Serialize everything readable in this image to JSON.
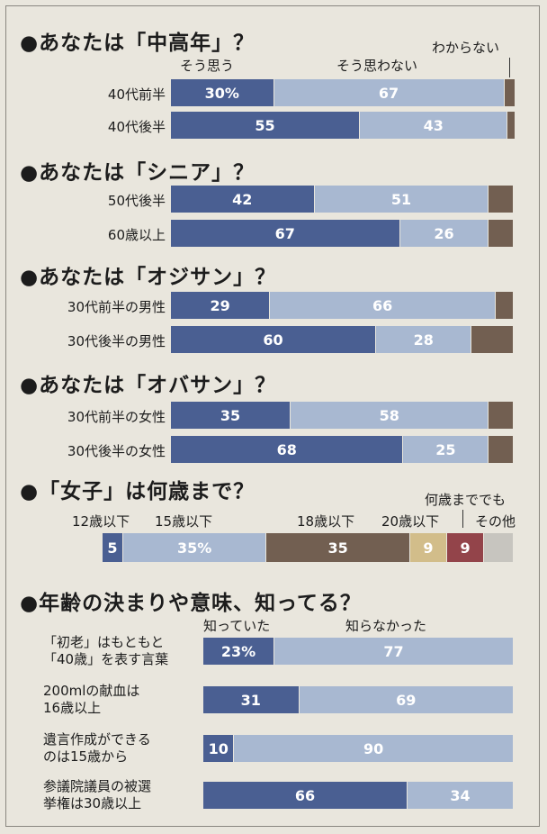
{
  "colors": {
    "dark": "#4a5f92",
    "light": "#a8b8d1",
    "brown": "#725f51",
    "tan": "#d2bd8a",
    "red": "#93444a",
    "gray": "#c7c5bf"
  },
  "sections": [
    {
      "title": "●あなたは「中高年」？"
    },
    {
      "title": "●あなたは「シニア」？"
    },
    {
      "title": "●あなたは「オジサン」？"
    },
    {
      "title": "●あなたは「オバサン」？"
    },
    {
      "title": "●「女子」は何歳まで？"
    },
    {
      "title": "●年齢の決まりや意味、知ってる？"
    }
  ],
  "legend": {
    "yes": "そう思う",
    "no": "そう思わない",
    "unknown": "わからない",
    "knew": "知っていた",
    "didnt_know": "知らなかった"
  },
  "chart_data": [
    {
      "type": "bar",
      "title": "●あなたは「中高年」？",
      "categories": [
        "40代前半",
        "40代後半"
      ],
      "series": [
        {
          "name": "そう思う",
          "values": [
            30,
            55
          ],
          "labels": [
            "30%",
            "55"
          ]
        },
        {
          "name": "そう思わない",
          "values": [
            67,
            43
          ],
          "labels": [
            "67",
            "43"
          ]
        },
        {
          "name": "わからない",
          "values": [
            3,
            2
          ],
          "labels": [
            "",
            ""
          ]
        }
      ]
    },
    {
      "type": "bar",
      "title": "●あなたは「シニア」？",
      "categories": [
        "50代後半",
        "60歳以上"
      ],
      "series": [
        {
          "name": "",
          "values": [
            42,
            67
          ],
          "labels": [
            "42",
            "67"
          ]
        },
        {
          "name": "",
          "values": [
            51,
            26
          ],
          "labels": [
            "51",
            "26"
          ]
        },
        {
          "name": "",
          "values": [
            7,
            7
          ],
          "labels": [
            "",
            ""
          ]
        }
      ]
    },
    {
      "type": "bar",
      "title": "●あなたは「オジサン」？",
      "categories": [
        "30代前半の男性",
        "30代後半の男性"
      ],
      "series": [
        {
          "name": "",
          "values": [
            29,
            60
          ],
          "labels": [
            "29",
            "60"
          ]
        },
        {
          "name": "",
          "values": [
            66,
            28
          ],
          "labels": [
            "66",
            "28"
          ]
        },
        {
          "name": "",
          "values": [
            5,
            12
          ],
          "labels": [
            "",
            ""
          ]
        }
      ]
    },
    {
      "type": "bar",
      "title": "●あなたは「オバサン」？",
      "categories": [
        "30代前半の女性",
        "30代後半の女性"
      ],
      "series": [
        {
          "name": "",
          "values": [
            35,
            68
          ],
          "labels": [
            "35",
            "68"
          ]
        },
        {
          "name": "",
          "values": [
            58,
            25
          ],
          "labels": [
            "58",
            "25"
          ]
        },
        {
          "name": "",
          "values": [
            7,
            7
          ],
          "labels": [
            "",
            ""
          ]
        }
      ]
    },
    {
      "type": "bar",
      "title": "●「女子」は何歳まで？",
      "categories": [
        ""
      ],
      "series": [
        {
          "name": "12歳以下",
          "values": [
            5
          ],
          "labels": [
            "5"
          ]
        },
        {
          "name": "15歳以下",
          "values": [
            35
          ],
          "labels": [
            "35%"
          ]
        },
        {
          "name": "18歳以下",
          "values": [
            35
          ],
          "labels": [
            "35"
          ]
        },
        {
          "name": "20歳以下",
          "values": [
            9
          ],
          "labels": [
            "9"
          ]
        },
        {
          "name": "何歳まででも",
          "values": [
            9
          ],
          "labels": [
            "9"
          ]
        },
        {
          "name": "その他",
          "values": [
            7
          ],
          "labels": [
            ""
          ]
        }
      ]
    },
    {
      "type": "bar",
      "title": "●年齢の決まりや意味、知ってる？",
      "categories": [
        "「初老」はもともと\n「40歳」を表す言葉",
        "200mlの献血は\n16歳以上",
        "遺言作成ができる\nのは15歳から",
        "参議院議員の被選\n挙権は30歳以上"
      ],
      "series": [
        {
          "name": "知っていた",
          "values": [
            23,
            31,
            10,
            66
          ],
          "labels": [
            "23%",
            "31",
            "10",
            "66"
          ]
        },
        {
          "name": "知らなかった",
          "values": [
            77,
            69,
            90,
            34
          ],
          "labels": [
            "77",
            "69",
            "90",
            "34"
          ]
        }
      ]
    }
  ]
}
